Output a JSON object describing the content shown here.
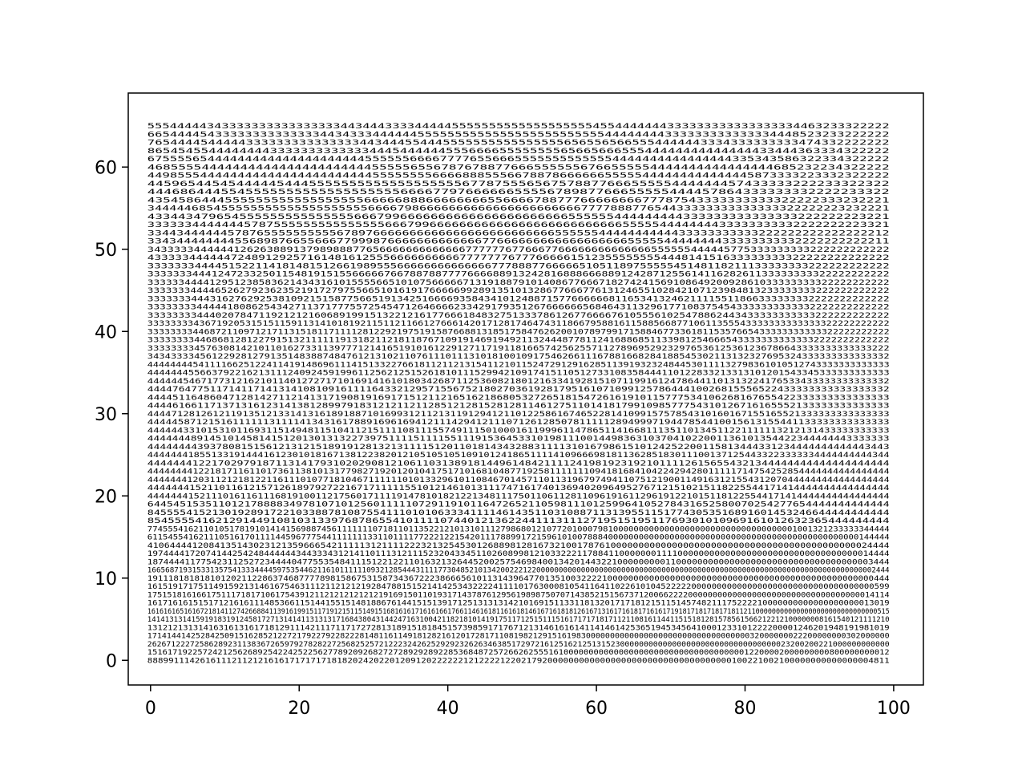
{
  "chart_data": {
    "type": "scatter",
    "title": "",
    "xlabel": "",
    "ylabel": "",
    "xlim": [
      -3,
      104
    ],
    "ylim": [
      -3,
      69
    ],
    "xticks": [
      0,
      20,
      40,
      60,
      80,
      100
    ],
    "yticks": [
      0,
      10,
      20,
      30,
      40,
      50,
      60
    ],
    "grid": false,
    "marker_style": "text-labels",
    "x_range": [
      0,
      99
    ],
    "y_range": [
      0,
      65
    ],
    "rows": [
      "888991114261611121121216161717171718182024202201209120222222121222212202179200000000000000000000000000000000000100221002100000000000000004811",
      "1516171922572421256268925422425225627789209268272728929289228536848725726626255516100000000000000000000000000000000000012200002000000000800000000012",
      "2626712227258628923113836726597927828227256825257212223242625292923262634638517297216125162125131523000000000000000000000000000000000023200200221000000000000",
      "1714144142528425091516285212272179227922822281481161149181282161201728171108198212915161983000000000000000000000000000000000032000000022200000000302000000",
      "13121213131416316131617181291114211171171727281318915181845157398591717671213146161614114146142536519453456410001233101222200001246201948191981019",
      "1414131314159191831912458172713141411313131716843804314424716310042118218101419175117125151115161717171817112110816114411515181281578561566212212100000008161540121111210",
      "161616165161672181411274266884113916199151171912151151491516816161716161661766114616181161618146167161818126167131617161817161617191817181718171811211000000000000000000000000000000515",
      "16171616151517121616111485366115144155151481886761441515139171251313131421016915113311813201717181215115145748211175222210000000000000000000013019",
      "1751518161661751117181710617543912112121212121219169150110193171437876129561989875070714385215156737120066222200000000000000000000000000000000000014114",
      "16151917175114915921314616754631112112121219284788151521414253432222411110176300081054116411022610104522222000000000000000000000000000000000000599",
      "1911181818181012021122863746877778981586753158734367222386665610113143964770135100322221000000000000000000000000000000000000000000000000000444",
      "1665687193153313575413334444597535446211610111111093212854443111177304852101342002221220000000000000000000000000000000000000000000000000000000000000000000000000002444",
      "1874444117754231125272344440477553548411151221221101632132644520025754698400134201443221000000000110000000000000000000000000000000000003444",
      "19744441720741442542484444443443334312141101113121115232043345110260899812103322211788411000000011110000000000000000000000000000000000014444",
      "4106444412084135143023121359666542111113121111222321325453012688981281673210017876100000000000000000000000000000000000000000000024444",
      "6115455416211105161701111445967775441111111331101111772221221542011178899172159610100788840000000000000000000000000000000000000000000000000144444",
      "7745554162110105178191014141569887456111111107181101135221210131011127986801210772010007981000000000000000000000000000000000001001321233333344444",
      "8545555416212914491081031339768786554101111074401213622441113111271951519511769301010969161012632365444444444",
      "8455554152130192891722103388781087554111010106333411114614351103108871131395511517743053516891601453246644444444444",
      "6445451535110121788883497810710125601111107291191011647265211059811101259964105278431652580070254277654444444444444",
      "44444441521110161161116819100112175601711119147810182122134811175011061128110961916112961912210151181225544171414444444444444444",
      "4444444152110116121571261897927221671711111551012146101311174716174013694020964952767121510215118225544171414444444444444444",
      "44444441203112121812211611101077181046711111101013329610110846701457110113196797494110751219001149163121554312070444444444444444444",
      "44444444122181711611017361138101317798271920120104175171016810487719258111111109418168410422429428011111714754252854444444444444444",
      "44444441221702979187113141793102029081210611031389181449614842111124198192319210111126156554321344444444444444444444",
      "44444441855133191444161230101816713812238201210510510510910124186511114109666981811362851830111001371254433223333334444444444344",
      "44444444393780815156121312151891912813213111151201101814343288311113101679861510124252200115813444331234444444444443443",
      "444444489145101458141512013013132273975111151111551119153645331019811100144983631037041022001136101354422344444443333333",
      "44444433101531011693115149481151041121511110811155749111501000161199961147865114166811135110134511221111113212131433333333333",
      "44444587121516111111311114134316178891696169412111429412111071261285078111112894999719447854410015613155441133333333333333",
      "44447128126121191351213314131618918871016993121121311912941211012258616746522814109915757854310160167155165521333333333333333",
      "44446166117137131612314138128997918312121121128512128152812811461275110141817991098577754310126716165552133333333333333",
      "44445116486047128142711214131719081916917151211216516218680532726518154726161910115777534106268167655422333333333333333",
      "44447647751171411714131410810916111164332129571556752180270361928179516107109912578644410026815556522433333333333333332",
      "44444454671773121621011401272717101691416101803426871125360821801216334192815107119916124786441101313224176533433333333333332",
      "4444444556637922162131112409245919961125621251526181011152994210917415110512733108358444110122833213313101201543345333333333333",
      "44444444541111662512241141914869611141513322766181121121315411210115247291291628511391932324844530111132798361010512743333333333333",
      "3434333345612292812791351483887484761213102110761110111310181001091754626611167881668284188545302113132327695324333333333333332",
      "3333333345763081421011016273311397771214165191016122912711719118166574256255711278969529232976536125361236786643333333333333222",
      "3333333344686812812279151321111119131821121811876710919146919492113244487781124168868511339812546665433333333333332222222222222",
      "33333333446872110971217113151811711112812292197519158766881318517584762620010789799171588467733618115357665433333333333322222222222",
      "333333334367192053151511591131410181921151121166127666142017128174647431186679588161158856687710611355543333333333333322222222222",
      "333333334440207847119212121606891991513221216177666184832751333786126776666761055561025478862443433333333333222222222222",
      "3333333344444180862543427113717775572545471264666623342917935126766666656846431132961771083754543333333333332222222222222",
      "33333334443162762925381092151587756651913425166669358434101248871577666666811653413246211115511866333333332222222222222",
      "3333333444465262792362352191727975566510161917666669928913510132867766677613124655102842107123984813233333333222222222222",
      "333333444412951238583621434316101555566510107566666713191887910140867766671827424156910864920092861033333333322222222222",
      "33333334441247233250115481915155666667667887887777666688913242816888666889124287125561411628261133333333322222222222",
      "33333334444515221141814815126619895556666666666666677788877666665105118975555545148118211133333333222222222222",
      "43333344444472489129257161481612555666666666677777776777666661512355555555444814151633333333322222222222222",
      "3433333444444126263889137989888776566666666666667777776776667766666666666666555555444445775333333333222222222222",
      "334344444444556898766556667799987666666666666677666666666666666666555554444444433333333332222222222211",
      "334434444445787655555555556789766666666666666666666666665555554444444444433333333333222222222222222212",
      "3333334444444578755555555555555566679966666666666666666666666666555554444444433333333332222222223321",
      "4334434796545555555555555556667996666666666666666666666555555444444444333333333333333222222223221",
      "34444468545555555555555555555566667986666666666666666666666777788877654433333333333333322222223232221",
      "435458644455555555555555555566666888666666665566667887776666666677787543333333333322222333232221",
      "4446864445545555555555555555555666677976666665555678987766655555444457864333333332222233322",
      "44596544545444445444555555555555555555567787555656757887766655555444444457433333222233322322",
      "449855544444444444444444444444555555556666888555667887866666655555444444444444445873333223332322222",
      "468555544444444444444444444445555565567876788776665555556766555554444444444444444685232234322222",
      "675555654444444444444444444445555556666777765566655555555555554444444444444444335343586322334322222",
      "8654545544444444333333333333344454444445556666555555556566566655544444444444444433444363334322222",
      "76544445444443333333333333334434445544455555555555555556565565665554444443334333333333474332222222",
      "665444454333333333333334434333444444555555555555555555555555544444444333333333333334448523233222222",
      "5554444434333333333333333344344433334444455555555555555555554554444444333333333333333334463233322222"
    ]
  }
}
